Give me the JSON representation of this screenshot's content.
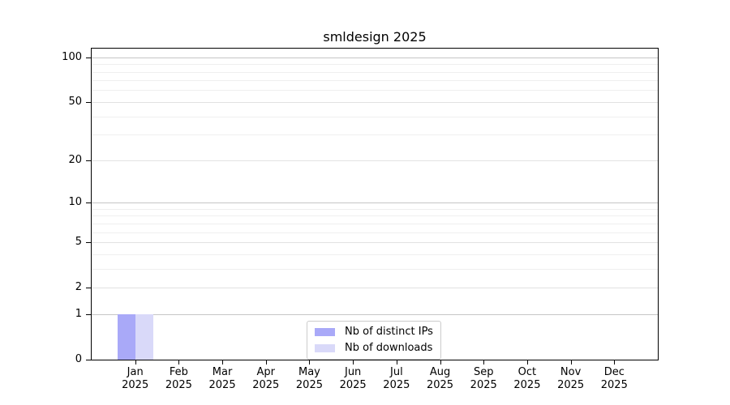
{
  "chart_data": {
    "type": "bar",
    "title": "smldesign 2025",
    "categories": [
      "Jan",
      "Feb",
      "Mar",
      "Apr",
      "May",
      "Jun",
      "Jul",
      "Aug",
      "Sep",
      "Oct",
      "Nov",
      "Dec"
    ],
    "category_year": "2025",
    "series": [
      {
        "name": "Nb of distinct IPs",
        "color": "#a9a9f8",
        "values": [
          1,
          0,
          0,
          0,
          0,
          0,
          0,
          0,
          0,
          0,
          0,
          0
        ]
      },
      {
        "name": "Nb of downloads",
        "color": "#d9d9f9",
        "values": [
          1,
          0,
          0,
          0,
          0,
          0,
          0,
          0,
          0,
          0,
          0,
          0
        ]
      }
    ],
    "yscale": "log1p",
    "ylim": [
      0,
      114.3
    ],
    "y_major_ticks": [
      0,
      1,
      2,
      5,
      10,
      20,
      50,
      100
    ],
    "y_strong_gridlines": [
      1,
      10,
      100
    ],
    "y_minor_ticks": [
      3,
      4,
      6,
      7,
      8,
      9,
      30,
      40,
      60,
      70,
      80,
      90
    ],
    "grid": "horizontal",
    "legend_position": "inside-bottom-center"
  },
  "colors": {
    "strong_gridline": "#c6c6c6",
    "major_gridline": "#e2e2e2",
    "minor_gridline": "#efefef",
    "axis": "#000000",
    "legend_border": "#cccccc"
  }
}
